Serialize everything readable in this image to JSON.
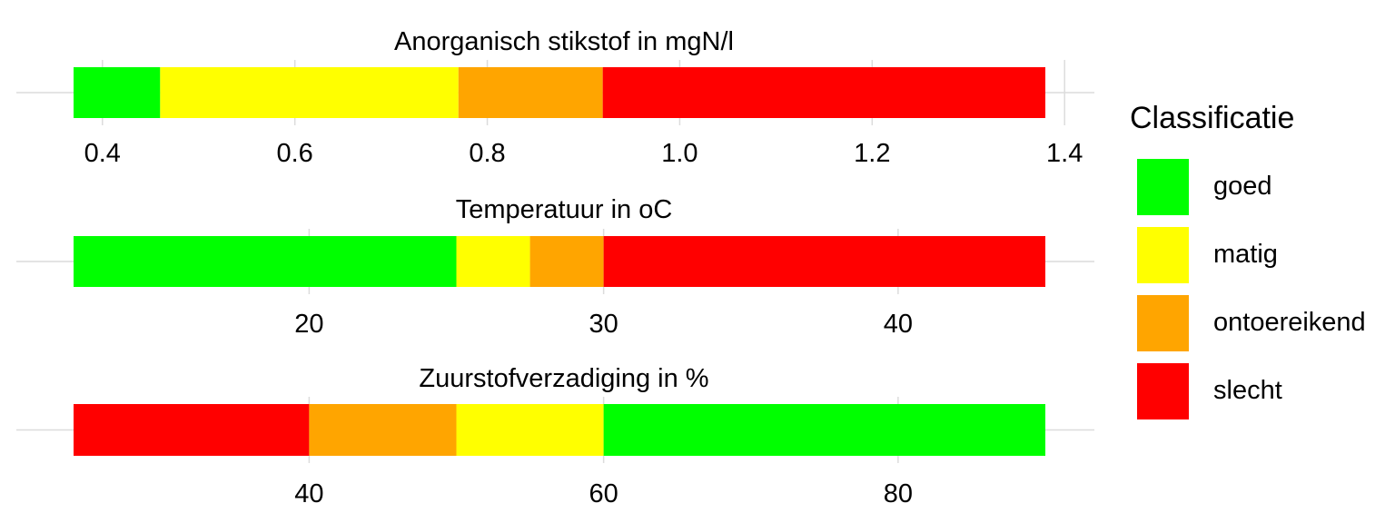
{
  "chart_data": {
    "type": "bar",
    "orientation": "horizontal-stacked-ranges",
    "legend": {
      "title": "Classificatie",
      "position": "right",
      "items": [
        {
          "label": "goed",
          "color": "#00FF00"
        },
        {
          "label": "matig",
          "color": "#FFFF00"
        },
        {
          "label": "ontoereikend",
          "color": "#FFA500"
        },
        {
          "label": "slecht",
          "color": "#FF0000"
        }
      ]
    },
    "grid": true,
    "panels": [
      {
        "title": "Anorganisch stikstof in mgN/l",
        "xlim": [
          0.37,
          1.38
        ],
        "ticks": [
          "0.4",
          "0.6",
          "0.8",
          "1.0",
          "1.2",
          "1.4"
        ],
        "tick_values": [
          0.4,
          0.6,
          0.8,
          1.0,
          1.2,
          1.4
        ],
        "segments": [
          {
            "class": "goed",
            "from": 0.37,
            "to": 0.46
          },
          {
            "class": "matig",
            "from": 0.46,
            "to": 0.77
          },
          {
            "class": "ontoereikend",
            "from": 0.77,
            "to": 0.92
          },
          {
            "class": "slecht",
            "from": 0.92,
            "to": 1.38
          }
        ]
      },
      {
        "title": "Temperatuur in oC",
        "xlim": [
          12,
          45
        ],
        "ticks": [
          "20",
          "30",
          "40"
        ],
        "tick_values": [
          20,
          30,
          40
        ],
        "segments": [
          {
            "class": "goed",
            "from": 12,
            "to": 25
          },
          {
            "class": "matig",
            "from": 25,
            "to": 27.5
          },
          {
            "class": "ontoereikend",
            "from": 27.5,
            "to": 30
          },
          {
            "class": "slecht",
            "from": 30,
            "to": 45
          }
        ]
      },
      {
        "title": "Zuurstofverzadiging in %",
        "xlim": [
          24,
          90
        ],
        "ticks": [
          "40",
          "60",
          "80"
        ],
        "tick_values": [
          40,
          60,
          80
        ],
        "segments": [
          {
            "class": "slecht",
            "from": 24,
            "to": 40
          },
          {
            "class": "ontoereikend",
            "from": 40,
            "to": 50
          },
          {
            "class": "matig",
            "from": 50,
            "to": 60
          },
          {
            "class": "goed",
            "from": 60,
            "to": 90
          }
        ]
      }
    ]
  }
}
